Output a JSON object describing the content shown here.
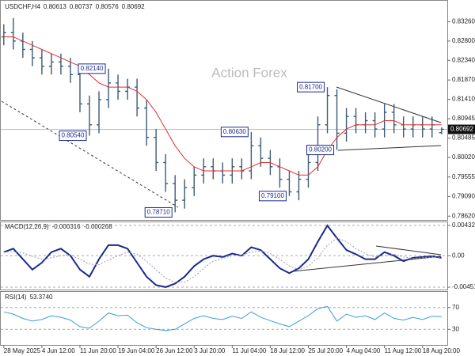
{
  "chart_data": [
    {
      "type": "ohlc",
      "title": "USDCHF,H4",
      "watermark": "Action Forex",
      "color": "#3d5a73",
      "ylim": [
        0.7853,
        0.8378
      ],
      "yticks": [
        {
          "value": 0.8326,
          "label": "0.83260"
        },
        {
          "value": 0.828,
          "label": "0.82800"
        },
        {
          "value": 0.8234,
          "label": "0.82340"
        },
        {
          "value": 0.8187,
          "label": "0.81870"
        },
        {
          "value": 0.8141,
          "label": "0.81410"
        },
        {
          "value": 0.80945,
          "label": "0.80945"
        },
        {
          "value": 0.80485,
          "label": "0.80485"
        },
        {
          "value": 0.8002,
          "label": "0.80020"
        },
        {
          "value": 0.79555,
          "label": "0.79555"
        },
        {
          "value": 0.7909,
          "label": "0.79090"
        },
        {
          "value": 0.7862,
          "label": "0.78620"
        }
      ],
      "open": [
        0.829,
        0.83,
        0.828,
        0.826,
        0.824,
        0.822,
        0.823,
        0.822,
        0.82,
        0.813,
        0.808,
        0.814,
        0.818,
        0.816,
        0.817,
        0.812,
        0.805,
        0.799,
        0.794,
        0.79,
        0.793,
        0.796,
        0.798,
        0.797,
        0.796,
        0.798,
        0.797,
        0.803,
        0.8,
        0.798,
        0.795,
        0.792,
        0.795,
        0.799,
        0.808,
        0.815,
        0.806,
        0.81,
        0.808,
        0.809,
        0.807,
        0.811,
        0.808,
        0.807,
        0.808,
        0.807,
        0.80613
      ],
      "high": [
        0.832,
        0.8335,
        0.83,
        0.828,
        0.826,
        0.825,
        0.825,
        0.824,
        0.822,
        0.815,
        0.816,
        0.8214,
        0.82,
        0.819,
        0.819,
        0.814,
        0.807,
        0.801,
        0.796,
        0.795,
        0.798,
        0.8,
        0.8,
        0.799,
        0.8,
        0.8,
        0.8063,
        0.805,
        0.802,
        0.8,
        0.797,
        0.797,
        0.801,
        0.81,
        0.817,
        0.8165,
        0.812,
        0.812,
        0.811,
        0.811,
        0.813,
        0.813,
        0.81,
        0.81,
        0.81,
        0.81,
        0.80737
      ],
      "low": [
        0.827,
        0.826,
        0.824,
        0.822,
        0.82,
        0.82,
        0.82,
        0.818,
        0.811,
        0.8054,
        0.806,
        0.812,
        0.814,
        0.814,
        0.81,
        0.803,
        0.797,
        0.792,
        0.7871,
        0.788,
        0.791,
        0.794,
        0.795,
        0.794,
        0.794,
        0.795,
        0.795,
        0.798,
        0.796,
        0.793,
        0.791,
        0.79,
        0.793,
        0.797,
        0.806,
        0.802,
        0.804,
        0.806,
        0.806,
        0.805,
        0.805,
        0.806,
        0.805,
        0.805,
        0.805,
        0.805,
        0.80576
      ],
      "close": [
        0.83,
        0.828,
        0.826,
        0.824,
        0.822,
        0.823,
        0.822,
        0.82,
        0.813,
        0.808,
        0.814,
        0.818,
        0.816,
        0.817,
        0.812,
        0.805,
        0.799,
        0.794,
        0.79,
        0.793,
        0.796,
        0.798,
        0.797,
        0.796,
        0.798,
        0.797,
        0.803,
        0.8,
        0.798,
        0.795,
        0.792,
        0.795,
        0.799,
        0.808,
        0.815,
        0.806,
        0.81,
        0.808,
        0.809,
        0.807,
        0.811,
        0.808,
        0.807,
        0.808,
        0.807,
        0.808,
        0.80692
      ],
      "ma": {
        "color": "#e0302b",
        "values": [
          0.829,
          0.829,
          0.828,
          0.827,
          0.826,
          0.825,
          0.824,
          0.823,
          0.822,
          0.82,
          0.818,
          0.817,
          0.817,
          0.817,
          0.816,
          0.814,
          0.811,
          0.807,
          0.803,
          0.8,
          0.798,
          0.797,
          0.797,
          0.797,
          0.797,
          0.797,
          0.798,
          0.799,
          0.799,
          0.798,
          0.797,
          0.796,
          0.796,
          0.798,
          0.802,
          0.805,
          0.807,
          0.808,
          0.808,
          0.808,
          0.809,
          0.809,
          0.808,
          0.808,
          0.808,
          0.808,
          0.808
        ]
      },
      "annotations": [
        {
          "x": 11,
          "value": 0.8214,
          "label": "0.82140"
        },
        {
          "x": 9,
          "value": 0.8054,
          "label": "0.80540"
        },
        {
          "x": 18,
          "value": 0.7871,
          "label": "0.78710"
        },
        {
          "x": 26,
          "value": 0.8063,
          "label": "0.80630"
        },
        {
          "x": 30,
          "value": 0.791,
          "label": "0.79100"
        },
        {
          "x": 34,
          "value": 0.817,
          "label": "0.81700"
        },
        {
          "x": 35,
          "value": 0.802,
          "label": "0.80200"
        }
      ]
    },
    {
      "type": "macd",
      "title": "MACD(12,26,9)",
      "ylim": [
        -0.004958,
        0.00488
      ],
      "yticks": [
        0.004325,
        {
          "value": 0,
          "label": "0.00"
        },
        -0.004511
      ],
      "series": [
        {
          "color": "#1c2a8c",
          "values": [
            0.0005,
            0.001,
            -0.0005,
            -0.002,
            -0.001,
            0.0005,
            0.001,
            0.0,
            -0.002,
            -0.003,
            -0.0005,
            0.0015,
            0.0015,
            0.001,
            -0.001,
            -0.003,
            -0.0042,
            -0.0045,
            -0.004,
            -0.003,
            -0.0015,
            -0.0005,
            0.0,
            -0.0002,
            0.0003,
            0.0,
            0.0012,
            0.0008,
            -0.0005,
            -0.0018,
            -0.0025,
            -0.0018,
            -0.0005,
            0.002,
            0.0043,
            0.0025,
            0.0008,
            0.0002,
            -0.0005,
            -0.0005,
            0.0005,
            0.0,
            -0.0008,
            -0.0003,
            -0.0002,
            -0.0001,
            -0.000316
          ]
        },
        {
          "color": "#9a9ab8",
          "values": [
            0.0005,
            0.0006,
            0.0004,
            -0.0001,
            -0.0005,
            -0.0003,
            0.0,
            0.0001,
            -0.0005,
            -0.0012,
            -0.0013,
            -0.0006,
            0.0,
            0.0005,
            0.0002,
            -0.0008,
            -0.002,
            -0.0032,
            -0.0038,
            -0.0038,
            -0.003,
            -0.0018,
            -0.0008,
            -0.0004,
            0.0,
            0.0001,
            0.0005,
            0.0007,
            0.0003,
            -0.0005,
            -0.0015,
            -0.002,
            -0.0015,
            -0.0003,
            0.0015,
            0.0025,
            0.002,
            0.001,
            0.0003,
            -0.0002,
            0.0,
            0.0002,
            -0.0002,
            -0.0004,
            -0.0003,
            -0.0002,
            -0.000268
          ]
        }
      ]
    },
    {
      "type": "rsi",
      "title": "RSI(14)",
      "reading": {
        "value": 53.374,
        "label": "53.3740"
      },
      "color": "#3b9be0",
      "ylim": [
        0,
        100
      ],
      "yticks": [
        70,
        30
      ],
      "values": [
        62,
        58,
        50,
        45,
        48,
        55,
        52,
        47,
        35,
        32,
        45,
        60,
        55,
        56,
        42,
        33,
        30,
        28,
        30,
        40,
        50,
        55,
        50,
        48,
        54,
        50,
        62,
        52,
        46,
        40,
        35,
        45,
        55,
        68,
        72,
        45,
        58,
        52,
        55,
        48,
        60,
        50,
        47,
        52,
        48,
        54,
        53.374
      ],
      "xlim": [
        -0.4,
        46.6
      ],
      "xticks": [
        {
          "value": 0,
          "label": "28 May 2025"
        },
        {
          "value": 4,
          "label": "4 Jun 12:00"
        },
        {
          "value": 8,
          "label": "11 Jun 20:00"
        },
        {
          "value": 12,
          "label": "19 Jun 04:00"
        },
        {
          "value": 16,
          "label": "26 Jun 12:00"
        },
        {
          "value": 20,
          "label": "3 Jul 20:00"
        },
        {
          "value": 24,
          "label": "11 Jul 04:00"
        },
        {
          "value": 28,
          "label": "18 Jul 12:00"
        },
        {
          "value": 32,
          "label": "25 Jul 20:00"
        },
        {
          "value": 36,
          "label": "4 Aug 04:00"
        },
        {
          "value": 40,
          "label": "11 Aug 12:00"
        },
        {
          "value": 44,
          "label": "18 Aug 20:00"
        }
      ]
    }
  ]
}
